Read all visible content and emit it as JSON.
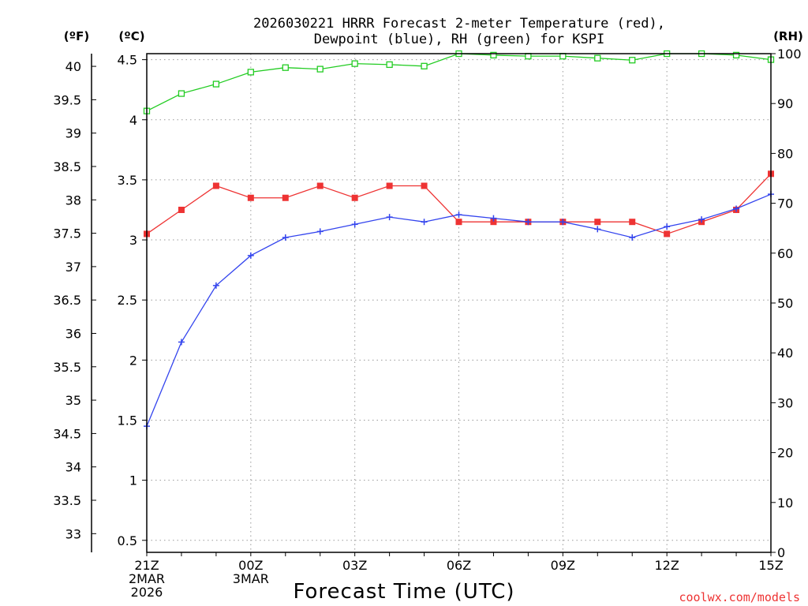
{
  "chart_data": {
    "type": "line",
    "title_line1": "2026030221 HRRR Forecast 2-meter Temperature (red),",
    "title_line2": "Dewpoint (blue), RH (green) for KSPI",
    "xlabel": "Forecast Time (UTC)",
    "left_outer_unit": "(ºF)",
    "left_inner_unit": "(ºC)",
    "right_unit": "(RH)",
    "credit": "coolwx.com/models",
    "x_ticks": [
      {
        "index": 0,
        "lines": [
          "21Z",
          "2MAR",
          "2026"
        ]
      },
      {
        "index": 3,
        "lines": [
          "00Z",
          "3MAR"
        ]
      },
      {
        "index": 6,
        "lines": [
          "03Z"
        ]
      },
      {
        "index": 9,
        "lines": [
          "06Z"
        ]
      },
      {
        "index": 12,
        "lines": [
          "09Z"
        ]
      },
      {
        "index": 15,
        "lines": [
          "12Z"
        ]
      },
      {
        "index": 18,
        "lines": [
          "15Z"
        ]
      }
    ],
    "celsius_axis": {
      "range": [
        0.4,
        4.55
      ],
      "ticks": [
        0.5,
        1,
        1.5,
        2,
        2.5,
        3,
        3.5,
        4,
        4.5
      ]
    },
    "fahrenheit_axis": {
      "ticks": [
        33,
        33.5,
        34,
        34.5,
        35,
        35.5,
        36,
        36.5,
        37,
        37.5,
        38,
        38.5,
        39,
        39.5,
        40
      ]
    },
    "rh_axis": {
      "range": [
        0,
        100
      ],
      "ticks": [
        0,
        10,
        20,
        30,
        40,
        50,
        60,
        70,
        80,
        90,
        100
      ]
    },
    "grid": true,
    "series": [
      {
        "key": "temperature",
        "color": "#ee3333",
        "marker": "filled-square",
        "axis": "celsius",
        "values": [
          3.05,
          3.25,
          3.45,
          3.35,
          3.35,
          3.45,
          3.35,
          3.45,
          3.45,
          3.15,
          3.15,
          3.15,
          3.15,
          3.15,
          3.15,
          3.05,
          3.15,
          3.25,
          3.55
        ]
      },
      {
        "key": "dewpoint",
        "color": "#3344ee",
        "marker": "plus",
        "axis": "celsius",
        "values": [
          1.45,
          2.15,
          2.62,
          2.87,
          3.02,
          3.07,
          3.13,
          3.19,
          3.15,
          3.21,
          3.18,
          3.15,
          3.15,
          3.09,
          3.02,
          3.11,
          3.17,
          3.26,
          3.38
        ]
      },
      {
        "key": "rh",
        "color": "#22cc22",
        "marker": "open-square",
        "axis": "rh",
        "values": [
          88.5,
          92.0,
          93.9,
          96.3,
          97.2,
          96.9,
          98.0,
          97.8,
          97.5,
          100,
          99.7,
          99.5,
          99.5,
          99.1,
          98.7,
          100,
          100,
          99.7,
          98.8
        ]
      }
    ]
  }
}
